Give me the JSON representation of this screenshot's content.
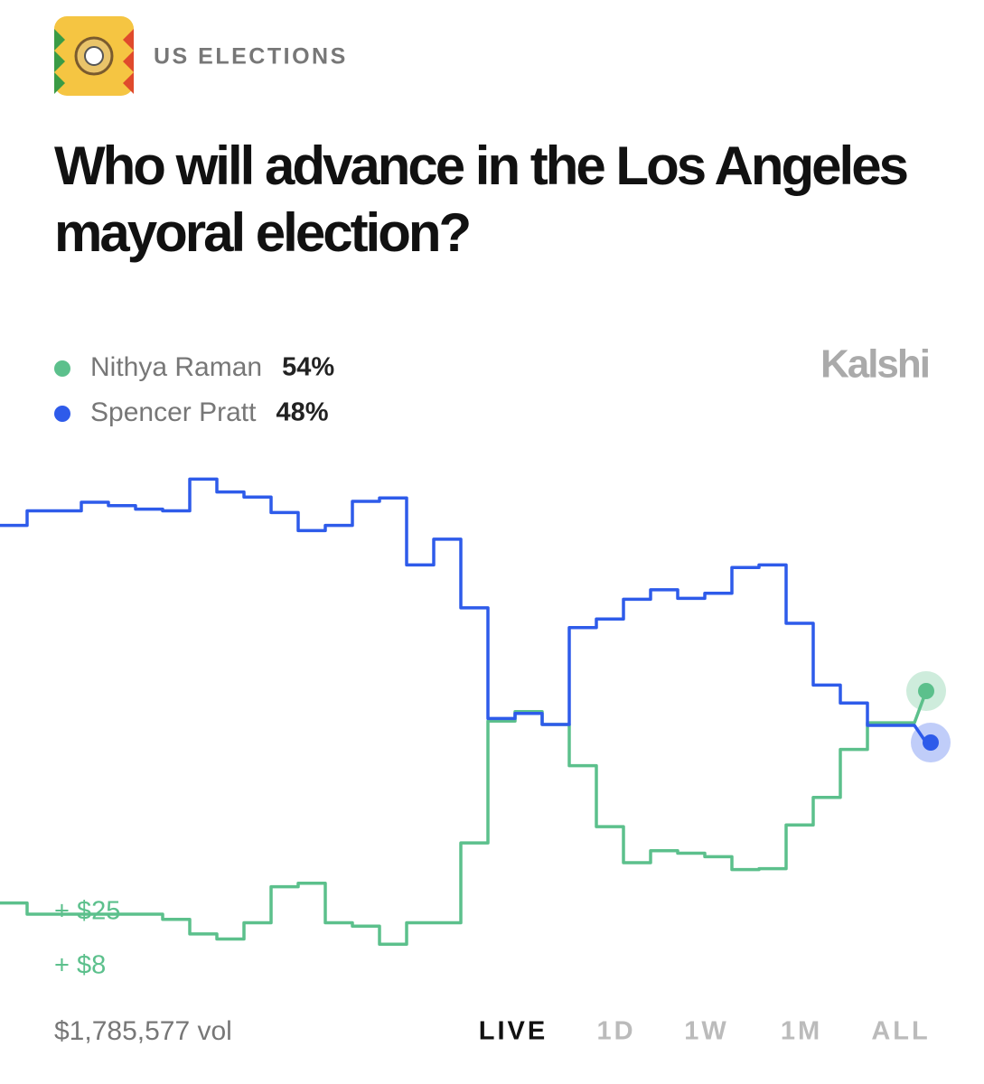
{
  "chart_data": {
    "type": "line",
    "category": "US ELECTIONS",
    "title": "Who will advance in the Los Angeles mayoral election?",
    "watermark": "Kalshi",
    "series": [
      {
        "name": "Nithya Raman",
        "color": "#5cc08c",
        "legend_value": "54%",
        "values": [
          29.3,
          28,
          28,
          28,
          28,
          28,
          27.4,
          25.7,
          25.1,
          27,
          31.2,
          31.6,
          27,
          26.6,
          24.5,
          27,
          27,
          36.3,
          50.5,
          51.6,
          50.1,
          45.3,
          38.2,
          34,
          35.4,
          35.1,
          34.7,
          33.2,
          33.3,
          38.4,
          41.6,
          47.2,
          50.3,
          50.3,
          54
        ]
      },
      {
        "name": "Spencer Pratt",
        "color": "#2e5bea",
        "legend_value": "48%",
        "values": [
          73.3,
          75,
          75,
          76,
          75.6,
          75.2,
          75,
          78.7,
          77.2,
          76.6,
          74.8,
          72.7,
          73.3,
          76.1,
          76.5,
          68.7,
          71.7,
          63.7,
          50.8,
          51.4,
          50.1,
          61.4,
          62.4,
          64.7,
          65.8,
          64.8,
          65.4,
          68.4,
          68.7,
          61.9,
          54.7,
          52.6,
          50,
          50,
          48
        ]
      }
    ],
    "ylim": [
      20,
      80
    ],
    "annotations": [
      "+ $25",
      "+ $8"
    ],
    "volume": "$1,785,577 vol",
    "ranges": [
      "LIVE",
      "1D",
      "1W",
      "1M",
      "ALL"
    ],
    "active_range": "LIVE"
  }
}
